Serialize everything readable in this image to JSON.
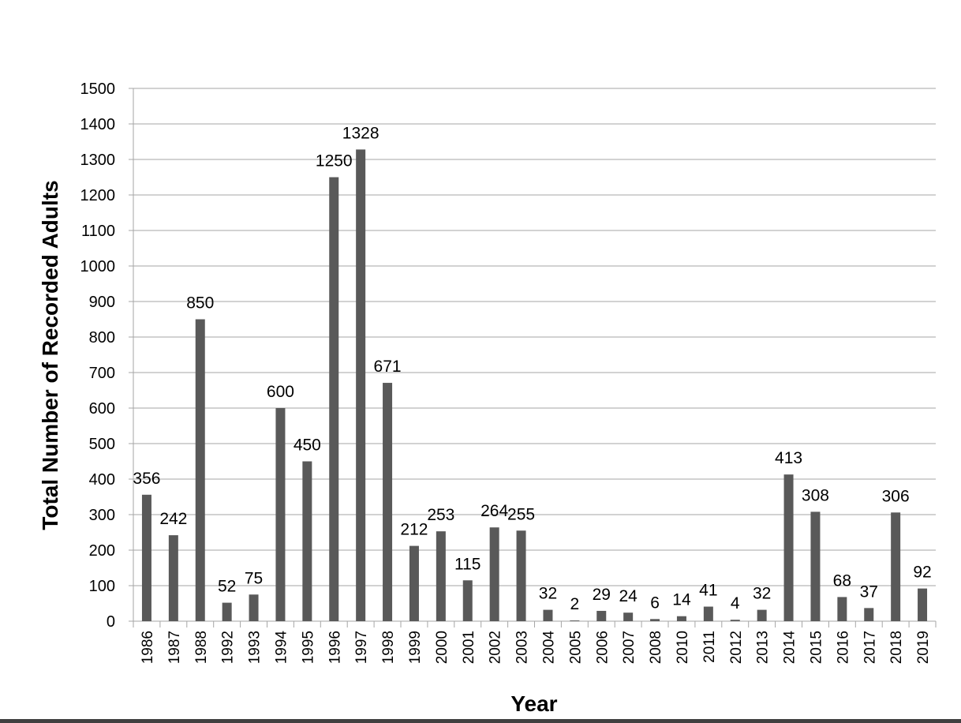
{
  "chart_data": {
    "type": "bar",
    "title": "",
    "xlabel": "Year",
    "ylabel": "Total Number of Recorded Adults",
    "ylim": [
      0,
      1500
    ],
    "y_ticks": [
      0,
      100,
      200,
      300,
      400,
      500,
      600,
      700,
      800,
      900,
      1000,
      1100,
      1200,
      1300,
      1400,
      1500
    ],
    "grid": "horizontal",
    "legend": "none",
    "bar_color": "#595959",
    "categories": [
      "1986",
      "1987",
      "1988",
      "1992",
      "1993",
      "1994",
      "1995",
      "1996",
      "1997",
      "1998",
      "1999",
      "2000",
      "2001",
      "2002",
      "2003",
      "2004",
      "2005",
      "2006",
      "2007",
      "2008",
      "2010",
      "2011",
      "2012",
      "2013",
      "2014",
      "2015",
      "2016",
      "2017",
      "2018",
      "2019"
    ],
    "values": [
      356,
      242,
      850,
      52,
      75,
      600,
      450,
      1250,
      1328,
      671,
      212,
      253,
      115,
      264,
      255,
      32,
      2,
      29,
      24,
      6,
      14,
      41,
      4,
      32,
      413,
      308,
      68,
      37,
      306,
      92
    ],
    "data_labels": [
      "356",
      "242",
      "850",
      "52",
      "75",
      "600",
      "450",
      "1250",
      "1328",
      "671",
      "212",
      "253",
      "115",
      "264",
      "255",
      "32",
      "2",
      "29",
      "24",
      "6",
      "14",
      "41",
      "4",
      "32",
      "413",
      "308",
      "68",
      "37",
      "306",
      "92"
    ]
  },
  "colors": {
    "bar": "#595959",
    "grid": "#a6a6a6",
    "axis": "#a6a6a6",
    "bottom_bar": "#404040"
  }
}
